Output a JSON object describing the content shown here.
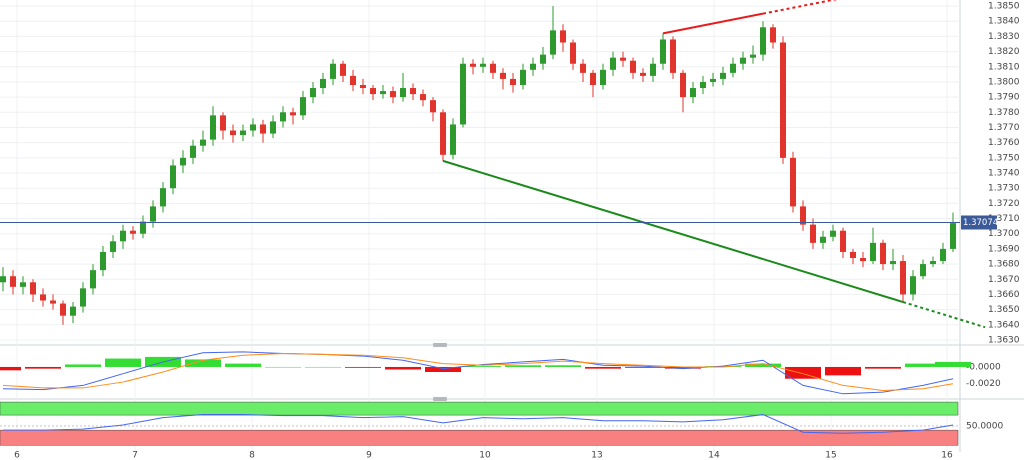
{
  "chart_data": [
    {
      "type": "candlestick",
      "xlim": [
        -0.3,
        95.7
      ],
      "ylim": [
        1.3628,
        1.3854
      ],
      "yticks": [
        {
          "value": 1.363,
          "label": "1.3630"
        },
        {
          "value": 1.364,
          "label": "1.3640"
        },
        {
          "value": 1.365,
          "label": "1.3650"
        },
        {
          "value": 1.366,
          "label": "1.3660"
        },
        {
          "value": 1.367,
          "label": "1.3670"
        },
        {
          "value": 1.368,
          "label": "1.3680"
        },
        {
          "value": 1.369,
          "label": "1.3690"
        },
        {
          "value": 1.37,
          "label": "1.3700"
        },
        {
          "value": 1.371,
          "label": "1.3710"
        },
        {
          "value": 1.372,
          "label": "1.3720"
        },
        {
          "value": 1.373,
          "label": "1.3730"
        },
        {
          "value": 1.374,
          "label": "1.3740"
        },
        {
          "value": 1.375,
          "label": "1.3750"
        },
        {
          "value": 1.376,
          "label": "1.3760"
        },
        {
          "value": 1.377,
          "label": "1.3770"
        },
        {
          "value": 1.378,
          "label": "1.3780"
        },
        {
          "value": 1.379,
          "label": "1.3790"
        },
        {
          "value": 1.38,
          "label": "1.3800"
        },
        {
          "value": 1.381,
          "label": "1.3810"
        },
        {
          "value": 1.382,
          "label": "1.3820"
        },
        {
          "value": 1.383,
          "label": "1.3830"
        },
        {
          "value": 1.384,
          "label": "1.3840"
        },
        {
          "value": 1.385,
          "label": "1.3850"
        }
      ],
      "xticks": [
        {
          "value": 1.4,
          "label": "6"
        },
        {
          "value": 13.2,
          "label": "7"
        },
        {
          "value": 24.9,
          "label": "8"
        },
        {
          "value": 36.6,
          "label": "9"
        },
        {
          "value": 48.2,
          "label": "10"
        },
        {
          "value": 59.4,
          "label": "13"
        },
        {
          "value": 71.1,
          "label": "14"
        },
        {
          "value": 82.8,
          "label": "15"
        },
        {
          "value": 94.4,
          "label": "16"
        }
      ],
      "grid": true,
      "up_color": "#2e9a2e",
      "down_color": "#e0342c",
      "open": [
        1.3668,
        1.3672,
        1.3665,
        1.3668,
        1.366,
        1.3656,
        1.3654,
        1.3646,
        1.3652,
        1.3664,
        1.3676,
        1.3688,
        1.3695,
        1.3702,
        1.37,
        1.3708,
        1.3718,
        1.373,
        1.3745,
        1.375,
        1.3758,
        1.3762,
        1.3778,
        1.3768,
        1.3765,
        1.3768,
        1.3772,
        1.3766,
        1.3774,
        1.378,
        1.3778,
        1.379,
        1.3796,
        1.3802,
        1.3812,
        1.3804,
        1.3798,
        1.3796,
        1.3792,
        1.3794,
        1.379,
        1.3796,
        1.3792,
        1.3788,
        1.378,
        1.3752,
        1.3772,
        1.3812,
        1.381,
        1.3812,
        1.3806,
        1.3802,
        1.3798,
        1.3808,
        1.3812,
        1.3818,
        1.3834,
        1.3826,
        1.3812,
        1.3806,
        1.3798,
        1.3808,
        1.3816,
        1.3814,
        1.3806,
        1.3804,
        1.3812,
        1.3828,
        1.3806,
        1.379,
        1.3796,
        1.38,
        1.3802,
        1.3806,
        1.3812,
        1.3816,
        1.3818,
        1.3836,
        1.3826,
        1.375,
        1.3718,
        1.3706,
        1.3694,
        1.3698,
        1.3702,
        1.3688,
        1.3684,
        1.3682,
        1.3694,
        1.368,
        1.3682,
        1.366,
        1.3672,
        1.368,
        1.3682,
        1.369
      ],
      "high": [
        1.3678,
        1.3676,
        1.3672,
        1.367,
        1.3664,
        1.366,
        1.3656,
        1.3655,
        1.3668,
        1.368,
        1.3692,
        1.3699,
        1.3706,
        1.3705,
        1.3712,
        1.3722,
        1.3734,
        1.3749,
        1.3755,
        1.3762,
        1.3768,
        1.3784,
        1.378,
        1.3772,
        1.3772,
        1.3776,
        1.3775,
        1.3778,
        1.3784,
        1.3783,
        1.3794,
        1.38,
        1.3806,
        1.3815,
        1.3814,
        1.3808,
        1.3802,
        1.3798,
        1.3798,
        1.3797,
        1.3806,
        1.3799,
        1.3795,
        1.379,
        1.3782,
        1.3776,
        1.3816,
        1.3815,
        1.3816,
        1.3814,
        1.3809,
        1.3806,
        1.3812,
        1.3816,
        1.3823,
        1.385,
        1.3838,
        1.3828,
        1.3815,
        1.3808,
        1.3812,
        1.382,
        1.382,
        1.3816,
        1.3809,
        1.3816,
        1.3832,
        1.383,
        1.3808,
        1.38,
        1.3804,
        1.3806,
        1.381,
        1.3816,
        1.382,
        1.3824,
        1.384,
        1.3838,
        1.383,
        1.3754,
        1.3722,
        1.371,
        1.3702,
        1.3706,
        1.3704,
        1.369,
        1.3688,
        1.3704,
        1.3696,
        1.369,
        1.3686,
        1.3676,
        1.3683,
        1.3685,
        1.3694,
        1.3714
      ],
      "low": [
        1.3662,
        1.366,
        1.366,
        1.3655,
        1.3652,
        1.365,
        1.364,
        1.3641,
        1.3648,
        1.366,
        1.3672,
        1.3684,
        1.369,
        1.3696,
        1.3697,
        1.3704,
        1.3714,
        1.3726,
        1.374,
        1.3746,
        1.3754,
        1.3758,
        1.3762,
        1.376,
        1.3761,
        1.3764,
        1.376,
        1.3763,
        1.377,
        1.3772,
        1.3775,
        1.3786,
        1.3792,
        1.3798,
        1.38,
        1.3794,
        1.3792,
        1.3788,
        1.3789,
        1.3786,
        1.3787,
        1.3788,
        1.3784,
        1.3774,
        1.3748,
        1.3749,
        1.377,
        1.3805,
        1.3806,
        1.3802,
        1.3795,
        1.3793,
        1.3795,
        1.3804,
        1.3808,
        1.3815,
        1.382,
        1.3808,
        1.38,
        1.379,
        1.3795,
        1.3804,
        1.381,
        1.3802,
        1.38,
        1.38,
        1.3808,
        1.3802,
        1.378,
        1.3786,
        1.3792,
        1.3797,
        1.3798,
        1.3803,
        1.3808,
        1.3812,
        1.3814,
        1.3822,
        1.3746,
        1.3714,
        1.3702,
        1.369,
        1.369,
        1.3695,
        1.3684,
        1.368,
        1.3678,
        1.368,
        1.3676,
        1.3676,
        1.3655,
        1.3656,
        1.367,
        1.3678,
        1.368,
        1.3688
      ],
      "close": [
        1.3672,
        1.3665,
        1.3668,
        1.366,
        1.3656,
        1.3654,
        1.3646,
        1.3652,
        1.3664,
        1.3676,
        1.3688,
        1.3695,
        1.3702,
        1.37,
        1.3708,
        1.3718,
        1.373,
        1.3745,
        1.375,
        1.3758,
        1.3762,
        1.3778,
        1.3768,
        1.3765,
        1.3768,
        1.3772,
        1.3766,
        1.3774,
        1.378,
        1.3778,
        1.379,
        1.3796,
        1.3802,
        1.3812,
        1.3804,
        1.3798,
        1.3796,
        1.3792,
        1.3794,
        1.379,
        1.3796,
        1.3792,
        1.3788,
        1.378,
        1.3752,
        1.3772,
        1.3812,
        1.381,
        1.3812,
        1.3806,
        1.3802,
        1.3798,
        1.3808,
        1.3812,
        1.3818,
        1.3834,
        1.3826,
        1.3812,
        1.3806,
        1.3798,
        1.3808,
        1.3816,
        1.3814,
        1.3806,
        1.3804,
        1.3812,
        1.3828,
        1.3806,
        1.379,
        1.3796,
        1.38,
        1.3802,
        1.3806,
        1.3812,
        1.3816,
        1.3818,
        1.3836,
        1.3826,
        1.375,
        1.3718,
        1.3706,
        1.3694,
        1.3698,
        1.3702,
        1.3688,
        1.3684,
        1.3682,
        1.3694,
        1.368,
        1.3682,
        1.366,
        1.3672,
        1.368,
        1.3682,
        1.369,
        1.3707
      ],
      "current_price": 1.37074,
      "current_color": "#3b5a9a",
      "trendlines": [
        {
          "color": "#e81c1c",
          "points": [
            [
              66,
              1.3832
            ],
            [
              76,
              1.3845
            ]
          ]
        },
        {
          "color": "#1a8a1a",
          "points": [
            [
              44,
              1.3748
            ],
            [
              90,
              1.3655
            ]
          ]
        }
      ]
    },
    {
      "type": "macd",
      "ylim": [
        -0.0037,
        0.0025
      ],
      "yticks": [
        {
          "value": 0,
          "label": "-0.0000"
        },
        {
          "value": -0.002,
          "label": "-0.0020"
        }
      ],
      "x": [
        0,
        4,
        8,
        12,
        16,
        20,
        24,
        28,
        32,
        36,
        40,
        44,
        48,
        52,
        56,
        60,
        64,
        68,
        72,
        76,
        80,
        84,
        88,
        92,
        95
      ],
      "histogram": [
        -0.0004,
        -0.0002,
        0.0003,
        0.001,
        0.0012,
        0.0009,
        0.0004,
        0,
        0,
        -0.0001,
        -0.0003,
        -0.0006,
        0.0001,
        0.0002,
        0.0002,
        -0.0002,
        -0.0001,
        -0.0002,
        0.0001,
        0.0004,
        -0.0014,
        -0.001,
        -0.0002,
        0.0004,
        0.0006
      ],
      "hist_up_color": "#33dd33",
      "hist_down_color": "#ee1111",
      "series": [
        {
          "color": "#4466ee",
          "values": [
            -0.0026,
            -0.0027,
            -0.0022,
            -0.0008,
            0.0006,
            0.0017,
            0.0018,
            0.0016,
            0.0015,
            0.0013,
            0.0008,
            -0.0002,
            0.0003,
            0.0006,
            0.0009,
            0.0002,
            0.0001,
            -0.0002,
            0.0001,
            0.0008,
            -0.0022,
            -0.0032,
            -0.003,
            -0.0022,
            -0.0014
          ]
        },
        {
          "color": "#ff8c1a",
          "values": [
            -0.0022,
            -0.0025,
            -0.0025,
            -0.0018,
            -0.0006,
            0.0008,
            0.0014,
            0.0016,
            0.0015,
            0.0014,
            0.0011,
            0.0004,
            0.0002,
            0.0004,
            0.0007,
            0.0004,
            0.0002,
            0,
            0,
            0.0004,
            -0.0008,
            -0.0022,
            -0.0028,
            -0.0026,
            -0.002
          ]
        }
      ]
    },
    {
      "type": "oscillator",
      "ylim": [
        0,
        100
      ],
      "yticks": [
        {
          "value": 50,
          "label": "50.0000"
        }
      ],
      "bands": [
        {
          "from": 71,
          "to": 96,
          "color": "#6aee6a"
        },
        {
          "from": 13,
          "to": 42,
          "color": "#f88080"
        }
      ],
      "x": [
        0,
        4,
        8,
        12,
        16,
        20,
        24,
        28,
        32,
        36,
        40,
        44,
        48,
        52,
        56,
        60,
        64,
        68,
        72,
        76,
        80,
        84,
        88,
        92,
        95
      ],
      "series": [
        {
          "color": "#4466ee",
          "values": [
            42,
            42,
            44,
            52,
            66,
            72,
            72,
            70,
            70,
            66,
            68,
            56,
            66,
            64,
            66,
            60,
            60,
            58,
            62,
            72,
            38,
            36,
            38,
            42,
            52
          ]
        }
      ]
    }
  ]
}
